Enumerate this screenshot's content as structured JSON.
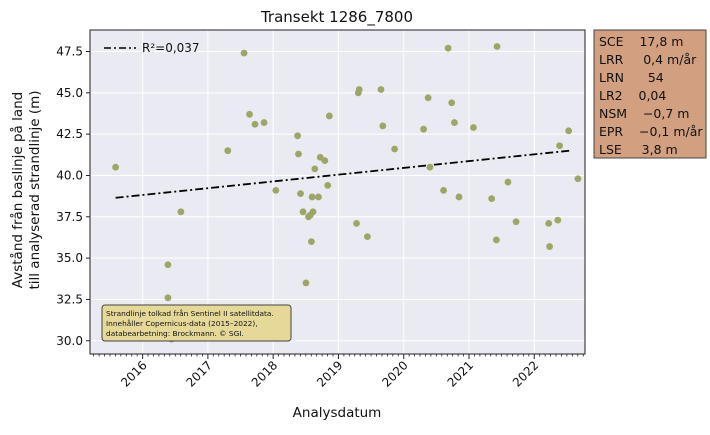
{
  "chart_data": {
    "type": "scatter",
    "title": "Transekt 1286_7800",
    "xlabel": "Analysdatum",
    "ylabel_lines": [
      "Avstånd från baslinje på land",
      "till analyserad strandlinje (m)"
    ],
    "x_ticks": [
      "2016",
      "2017",
      "2018",
      "2019",
      "2020",
      "2021",
      "2022"
    ],
    "y_ticks": [
      "30.0",
      "32.5",
      "35.0",
      "37.5",
      "40.0",
      "42.5",
      "45.0",
      "47.5"
    ],
    "xlim": [
      "2015-03-10",
      "2022-10-10"
    ],
    "ylim": [
      29.2,
      48.8
    ],
    "grid": true,
    "legend_location": "upper-left",
    "legend_entry": "R²=0,037",
    "trendline": {
      "style": "dash-dot",
      "color": "#000000",
      "x": [
        "2015-08-01",
        "2022-07-15"
      ],
      "y": [
        38.65,
        41.5
      ]
    },
    "point_color": "#9ea667",
    "points": [
      {
        "x": "2015-08-01",
        "y": 40.5
      },
      {
        "x": "2016-05-20",
        "y": 34.6
      },
      {
        "x": "2016-05-20",
        "y": 32.6
      },
      {
        "x": "2016-06-10",
        "y": 30.1
      },
      {
        "x": "2016-08-01",
        "y": 37.8
      },
      {
        "x": "2017-04-20",
        "y": 41.5
      },
      {
        "x": "2017-07-20",
        "y": 47.4
      },
      {
        "x": "2017-08-20",
        "y": 43.7
      },
      {
        "x": "2017-09-20",
        "y": 43.1
      },
      {
        "x": "2017-11-10",
        "y": 43.2
      },
      {
        "x": "2018-01-15",
        "y": 39.1
      },
      {
        "x": "2018-05-15",
        "y": 42.4
      },
      {
        "x": "2018-05-20",
        "y": 41.3
      },
      {
        "x": "2018-06-01",
        "y": 38.9
      },
      {
        "x": "2018-06-15",
        "y": 37.8
      },
      {
        "x": "2018-07-01",
        "y": 33.5
      },
      {
        "x": "2018-07-15",
        "y": 37.5
      },
      {
        "x": "2018-07-25",
        "y": 37.6
      },
      {
        "x": "2018-08-01",
        "y": 36.0
      },
      {
        "x": "2018-08-05",
        "y": 38.7
      },
      {
        "x": "2018-08-10",
        "y": 37.8
      },
      {
        "x": "2018-08-20",
        "y": 40.4
      },
      {
        "x": "2018-09-10",
        "y": 38.7
      },
      {
        "x": "2018-09-20",
        "y": 41.1
      },
      {
        "x": "2018-10-15",
        "y": 40.9
      },
      {
        "x": "2018-11-01",
        "y": 39.4
      },
      {
        "x": "2018-11-10",
        "y": 43.6
      },
      {
        "x": "2019-04-10",
        "y": 37.1
      },
      {
        "x": "2019-04-20",
        "y": 45.0
      },
      {
        "x": "2019-04-25",
        "y": 45.2
      },
      {
        "x": "2019-06-10",
        "y": 36.3
      },
      {
        "x": "2019-08-25",
        "y": 45.2
      },
      {
        "x": "2019-09-05",
        "y": 43.0
      },
      {
        "x": "2019-11-10",
        "y": 41.6
      },
      {
        "x": "2020-04-20",
        "y": 42.8
      },
      {
        "x": "2020-05-15",
        "y": 44.7
      },
      {
        "x": "2020-05-25",
        "y": 40.5
      },
      {
        "x": "2020-08-10",
        "y": 39.1
      },
      {
        "x": "2020-09-05",
        "y": 47.7
      },
      {
        "x": "2020-09-25",
        "y": 44.4
      },
      {
        "x": "2020-10-10",
        "y": 43.2
      },
      {
        "x": "2020-11-05",
        "y": 38.7
      },
      {
        "x": "2021-01-25",
        "y": 42.9
      },
      {
        "x": "2021-05-05",
        "y": 38.6
      },
      {
        "x": "2021-06-01",
        "y": 36.1
      },
      {
        "x": "2021-06-05",
        "y": 47.8
      },
      {
        "x": "2021-08-05",
        "y": 39.6
      },
      {
        "x": "2021-09-20",
        "y": 37.2
      },
      {
        "x": "2022-03-20",
        "y": 37.1
      },
      {
        "x": "2022-03-25",
        "y": 35.7
      },
      {
        "x": "2022-05-10",
        "y": 37.3
      },
      {
        "x": "2022-05-20",
        "y": 41.8
      },
      {
        "x": "2022-07-10",
        "y": 42.7
      },
      {
        "x": "2022-09-01",
        "y": 39.8
      }
    ]
  },
  "stats_box": {
    "background": "#d2a080",
    "lines": [
      "SCE    17,8 m",
      "LRR     0,4 m/år",
      "LRN      54",
      "LR2    0,04",
      "NSM    −0,7 m",
      "EPR    −0,1 m/år",
      "LSE     3,8 m"
    ]
  },
  "source_note": {
    "background": "#e6d898",
    "lines": [
      "Strandlinje tolkad från Sentinel II satellitdata.",
      "Innehåller Copernicus-data (2015–2022),",
      "databearbetning: Brockmann. © SGI."
    ]
  }
}
